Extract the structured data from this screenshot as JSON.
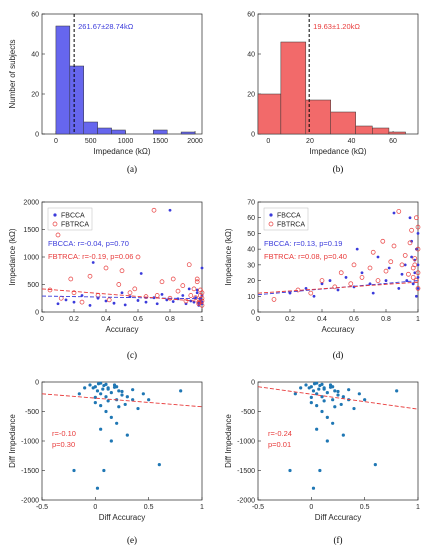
{
  "colors": {
    "blue": "#3b3bdb",
    "red": "#e83a3a",
    "hist_blue": "#6666ee",
    "hist_red": "#f26a6a",
    "scatter": "#1f77b4"
  },
  "chart_data": [
    {
      "panel": "(a)",
      "type": "bar",
      "xlabel": "Impedance (kΩ)",
      "ylabel": "Number of subjects",
      "xlim": [
        -200,
        2100
      ],
      "ylim": [
        0,
        60
      ],
      "xticks": [
        0,
        500,
        1000,
        1500,
        2000
      ],
      "yticks": [
        0,
        20,
        40,
        60
      ],
      "bins": [
        [
          0,
          200
        ],
        [
          200,
          400
        ],
        [
          400,
          600
        ],
        [
          600,
          800
        ],
        [
          800,
          1000
        ],
        [
          1400,
          1600
        ],
        [
          1800,
          2000
        ]
      ],
      "values": [
        54,
        34,
        6,
        3,
        2,
        2,
        1
      ],
      "mean_line": 262,
      "annotation": "261.67±28.74kΩ",
      "color": "hist_blue"
    },
    {
      "panel": "(b)",
      "type": "bar",
      "xlabel": "Impedance (kΩ)",
      "ylabel": "",
      "xlim": [
        -5,
        72
      ],
      "ylim": [
        0,
        60
      ],
      "xticks": [
        0,
        20,
        40,
        60
      ],
      "yticks": [
        0,
        20,
        40,
        60
      ],
      "bins": [
        [
          -5,
          6
        ],
        [
          6,
          18
        ],
        [
          18,
          30
        ],
        [
          30,
          42
        ],
        [
          42,
          50
        ],
        [
          50,
          58
        ],
        [
          58,
          66
        ]
      ],
      "values": [
        20,
        46,
        17,
        11,
        4,
        3,
        1
      ],
      "mean_line": 19.63,
      "annotation": "19.63±1.20kΩ",
      "color": "hist_red"
    },
    {
      "panel": "(c)",
      "type": "scatter",
      "xlabel": "Accuracy",
      "ylabel": "Impedance (kΩ)",
      "xlim": [
        0,
        1
      ],
      "ylim": [
        0,
        2000
      ],
      "xticks": [
        0,
        0.2,
        0.4,
        0.6,
        0.8,
        1
      ],
      "yticks": [
        0,
        500,
        1000,
        1500,
        2000
      ],
      "legend": [
        "FBCCA",
        "FBTRCA"
      ],
      "legend_position": "top-left",
      "annotations": [
        "FBCCA: r=-0.04, p=0.70",
        "FBTRCA: r=-0.19, p=0.06"
      ],
      "fit_lines": [
        {
          "series": "FBCCA",
          "x": [
            0,
            1
          ],
          "y": [
            290,
            240
          ]
        },
        {
          "series": "FBTRCA",
          "x": [
            0,
            1
          ],
          "y": [
            420,
            190
          ]
        }
      ],
      "series": [
        {
          "name": "FBCCA",
          "marker": "filled",
          "x": [
            0.1,
            0.15,
            0.2,
            0.25,
            0.3,
            0.32,
            0.35,
            0.4,
            0.45,
            0.5,
            0.52,
            0.55,
            0.6,
            0.62,
            0.65,
            0.7,
            0.72,
            0.75,
            0.78,
            0.8,
            0.82,
            0.85,
            0.88,
            0.9,
            0.92,
            0.93,
            0.95,
            0.96,
            0.97,
            0.98,
            0.99,
            1,
            1,
            1,
            1,
            0.99,
            0.98,
            0.97
          ],
          "y": [
            150,
            220,
            180,
            300,
            120,
            900,
            250,
            200,
            160,
            350,
            130,
            280,
            210,
            700,
            180,
            260,
            150,
            320,
            220,
            1850,
            190,
            240,
            300,
            150,
            420,
            200,
            180,
            260,
            350,
            120,
            220,
            180,
            300,
            150,
            800,
            250,
            170,
            400
          ]
        },
        {
          "name": "FBTRCA",
          "marker": "open",
          "x": [
            0.05,
            0.1,
            0.12,
            0.18,
            0.2,
            0.25,
            0.3,
            0.35,
            0.4,
            0.42,
            0.48,
            0.5,
            0.55,
            0.58,
            0.6,
            0.65,
            0.7,
            0.72,
            0.75,
            0.8,
            0.82,
            0.85,
            0.88,
            0.9,
            0.92,
            0.93,
            0.95,
            0.96,
            0.97,
            0.98,
            0.99,
            1,
            1,
            1,
            1,
            0.99,
            0.98,
            0.97
          ],
          "y": [
            400,
            1400,
            250,
            600,
            350,
            180,
            650,
            300,
            800,
            220,
            500,
            750,
            350,
            420,
            1000,
            280,
            1850,
            300,
            550,
            250,
            600,
            380,
            480,
            200,
            860,
            300,
            420,
            260,
            550,
            150,
            300,
            200,
            120,
            350,
            250,
            400,
            180,
            600
          ]
        }
      ]
    },
    {
      "panel": "(d)",
      "type": "scatter",
      "xlabel": "Accuracy",
      "ylabel": "Impedance (kΩ)",
      "xlim": [
        0,
        1
      ],
      "ylim": [
        0,
        70
      ],
      "xticks": [
        0,
        0.2,
        0.4,
        0.6,
        0.8,
        1
      ],
      "yticks": [
        0,
        10,
        20,
        30,
        40,
        50,
        60,
        70
      ],
      "legend": [
        "FBCCA",
        "FBTRCA"
      ],
      "legend_position": "top-left",
      "annotations": [
        "FBCCA: r=0.13, p=0.19",
        "FBTRCA: r=0.08, p=0.40"
      ],
      "fit_lines": [
        {
          "series": "FBCCA",
          "x": [
            0,
            1
          ],
          "y": [
            11,
            20
          ]
        },
        {
          "series": "FBTRCA",
          "x": [
            0,
            1
          ],
          "y": [
            12,
            19
          ]
        }
      ],
      "series": [
        {
          "name": "FBCCA",
          "marker": "filled",
          "x": [
            0.2,
            0.3,
            0.35,
            0.4,
            0.45,
            0.5,
            0.55,
            0.6,
            0.62,
            0.65,
            0.7,
            0.72,
            0.75,
            0.8,
            0.82,
            0.85,
            0.88,
            0.9,
            0.92,
            0.93,
            0.95,
            0.96,
            0.97,
            0.98,
            0.99,
            1,
            1,
            1,
            1,
            0.99,
            0.98,
            0.97,
            0.96
          ],
          "y": [
            12,
            15,
            10,
            18,
            20,
            14,
            22,
            16,
            40,
            25,
            18,
            12,
            35,
            20,
            28,
            63,
            15,
            24,
            30,
            20,
            60,
            35,
            18,
            25,
            40,
            30,
            15,
            50,
            22,
            10,
            33,
            18,
            45
          ]
        },
        {
          "name": "FBTRCA",
          "marker": "open",
          "x": [
            0.1,
            0.25,
            0.33,
            0.4,
            0.48,
            0.52,
            0.58,
            0.6,
            0.65,
            0.7,
            0.72,
            0.75,
            0.78,
            0.8,
            0.83,
            0.85,
            0.88,
            0.9,
            0.92,
            0.94,
            0.95,
            0.96,
            0.97,
            0.98,
            0.99,
            1,
            1,
            1,
            1,
            0.99,
            0.98,
            0.97
          ],
          "y": [
            8,
            14,
            12,
            20,
            16,
            25,
            18,
            30,
            22,
            28,
            38,
            20,
            45,
            26,
            32,
            42,
            64,
            30,
            36,
            24,
            44,
            52,
            28,
            34,
            20,
            40,
            25,
            54,
            15,
            60,
            30,
            22
          ]
        }
      ]
    },
    {
      "panel": "(e)",
      "type": "scatter",
      "xlabel": "Diff Accuracy",
      "ylabel": "Diff Impedance",
      "xlim": [
        -0.5,
        1
      ],
      "ylim": [
        -2000,
        0
      ],
      "xticks": [
        -0.5,
        0,
        0.5,
        1
      ],
      "yticks": [
        -2000,
        -1500,
        -1000,
        -500,
        0
      ],
      "annotations": [
        "r=-0.10",
        "p=0.30"
      ],
      "fit_line": {
        "x": [
          -0.5,
          1
        ],
        "y": [
          -200,
          -420
        ]
      },
      "series": [
        {
          "name": "",
          "marker": "dot",
          "x": [
            -0.05,
            -0.02,
            0,
            0.02,
            0.03,
            0.05,
            0.07,
            0.08,
            0.1,
            0.12,
            0.15,
            0.18,
            0.2,
            0.22,
            0.25,
            0.05,
            0.1,
            0.0,
            0.15,
            0.2,
            0.3,
            0.35,
            0.4,
            0.45,
            0.05,
            0.12,
            0.18,
            0.25,
            0.08,
            0.02,
            -0.1,
            -0.15,
            0.6,
            0.8,
            0.15,
            0.3,
            0.5,
            -0.2,
            0.1,
            0.05,
            0.2,
            0.35,
            0.0,
            0.12,
            0.22,
            0.28
          ],
          "y": [
            -50,
            -100,
            -80,
            -150,
            -30,
            -200,
            -120,
            -60,
            -250,
            -100,
            -180,
            -50,
            -300,
            -150,
            -220,
            -400,
            -500,
            -350,
            -600,
            -700,
            -250,
            -300,
            -450,
            -200,
            -800,
            -120,
            -90,
            -160,
            -1500,
            -1800,
            -100,
            -200,
            -1400,
            -150,
            -1000,
            -900,
            -300,
            -1500,
            -40,
            -20,
            -80,
            -130,
            -260,
            -320,
            -420,
            -380
          ]
        }
      ]
    },
    {
      "panel": "(f)",
      "type": "scatter",
      "xlabel": "Diff Accuracy",
      "ylabel": "Diff Impedance",
      "xlim": [
        -0.5,
        1
      ],
      "ylim": [
        -2000,
        0
      ],
      "xticks": [
        -0.5,
        0,
        0.5,
        1
      ],
      "yticks": [
        -2000,
        -1500,
        -1000,
        -500,
        0
      ],
      "annotations": [
        "r=-0.24",
        "p=0.01"
      ],
      "fit_line": {
        "x": [
          -0.5,
          1
        ],
        "y": [
          -80,
          -460
        ]
      },
      "series": [
        {
          "name": "",
          "marker": "dot",
          "x": [
            -0.05,
            -0.02,
            0,
            0.02,
            0.03,
            0.05,
            0.07,
            0.08,
            0.1,
            0.12,
            0.15,
            0.18,
            0.2,
            0.22,
            0.25,
            0.05,
            0.1,
            0.0,
            0.15,
            0.2,
            0.3,
            0.35,
            0.4,
            0.45,
            0.05,
            0.12,
            0.18,
            0.25,
            0.08,
            0.02,
            -0.1,
            -0.15,
            0.6,
            0.8,
            0.15,
            0.3,
            0.5,
            -0.2,
            0.1,
            0.05,
            0.2,
            0.35,
            0.0,
            0.12,
            0.22,
            0.28
          ],
          "y": [
            -50,
            -100,
            -80,
            -150,
            -30,
            -200,
            -120,
            -60,
            -250,
            -100,
            -180,
            -50,
            -300,
            -150,
            -220,
            -400,
            -500,
            -350,
            -600,
            -700,
            -250,
            -300,
            -450,
            -200,
            -800,
            -120,
            -90,
            -160,
            -1500,
            -1800,
            -100,
            -200,
            -1400,
            -150,
            -1000,
            -900,
            -300,
            -1500,
            -40,
            -20,
            -80,
            -130,
            -260,
            -320,
            -420,
            -380
          ]
        }
      ]
    }
  ]
}
